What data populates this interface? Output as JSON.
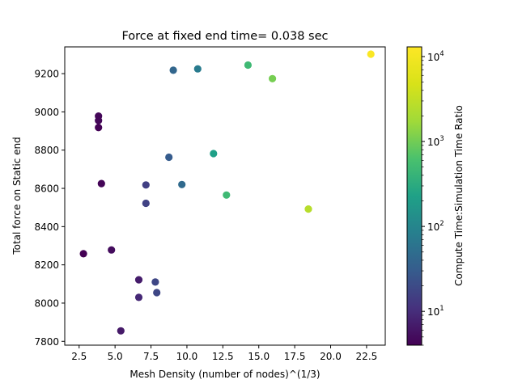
{
  "chart_data": {
    "type": "scatter",
    "title": "Force at fixed end time= 0.038 sec",
    "xlabel": "Mesh Density (number of nodes)^(1/3)",
    "ylabel": "Total force on Static end",
    "xlim": [
      1.5,
      23.8
    ],
    "ylim": [
      7780,
      9340
    ],
    "xticks": [
      2.5,
      5.0,
      7.5,
      10.0,
      12.5,
      15.0,
      17.5,
      20.0,
      22.5
    ],
    "xtick_labels": [
      "2.5",
      "5.0",
      "7.5",
      "10.0",
      "12.5",
      "15.0",
      "17.5",
      "20.0",
      "22.5"
    ],
    "yticks": [
      7800,
      8000,
      8200,
      8400,
      8600,
      8800,
      9000,
      9200
    ],
    "ytick_labels": [
      "7800",
      "8000",
      "8200",
      "8400",
      "8600",
      "8800",
      "9000",
      "9200"
    ],
    "grid": false,
    "colorbar": {
      "label": "Compute Time:Simulation Time Ratio",
      "scale": "log",
      "range": [
        4,
        13000
      ],
      "tick_labels": [
        {
          "exponent": 1,
          "base": "10",
          "sup": "1"
        },
        {
          "exponent": 2,
          "base": "10",
          "sup": "2"
        },
        {
          "exponent": 3,
          "base": "10",
          "sup": "3"
        },
        {
          "exponent": 4,
          "base": "10",
          "sup": "4"
        }
      ],
      "colormap": "viridis"
    },
    "points": [
      {
        "x": 2.8,
        "y": 8258,
        "c": 4
      },
      {
        "x": 3.85,
        "y": 8978,
        "c": 4.5
      },
      {
        "x": 3.85,
        "y": 8955,
        "c": 4.5
      },
      {
        "x": 3.85,
        "y": 8918,
        "c": 4.2
      },
      {
        "x": 4.05,
        "y": 8625,
        "c": 4.3
      },
      {
        "x": 4.75,
        "y": 8278,
        "c": 5
      },
      {
        "x": 5.4,
        "y": 7855,
        "c": 6.5
      },
      {
        "x": 6.65,
        "y": 8122,
        "c": 7
      },
      {
        "x": 6.65,
        "y": 8030,
        "c": 9
      },
      {
        "x": 7.15,
        "y": 8618,
        "c": 15
      },
      {
        "x": 7.15,
        "y": 8522,
        "c": 16
      },
      {
        "x": 7.8,
        "y": 8110,
        "c": 18
      },
      {
        "x": 7.9,
        "y": 8055,
        "c": 18
      },
      {
        "x": 8.75,
        "y": 8763,
        "c": 30
      },
      {
        "x": 9.05,
        "y": 9218,
        "c": 40
      },
      {
        "x": 9.65,
        "y": 8620,
        "c": 45
      },
      {
        "x": 10.75,
        "y": 9225,
        "c": 75
      },
      {
        "x": 11.85,
        "y": 8782,
        "c": 220
      },
      {
        "x": 12.75,
        "y": 8565,
        "c": 480
      },
      {
        "x": 14.25,
        "y": 9245,
        "c": 480
      },
      {
        "x": 15.95,
        "y": 9174,
        "c": 1050
      },
      {
        "x": 18.45,
        "y": 8492,
        "c": 2600
      },
      {
        "x": 22.8,
        "y": 9302,
        "c": 12000
      }
    ]
  }
}
